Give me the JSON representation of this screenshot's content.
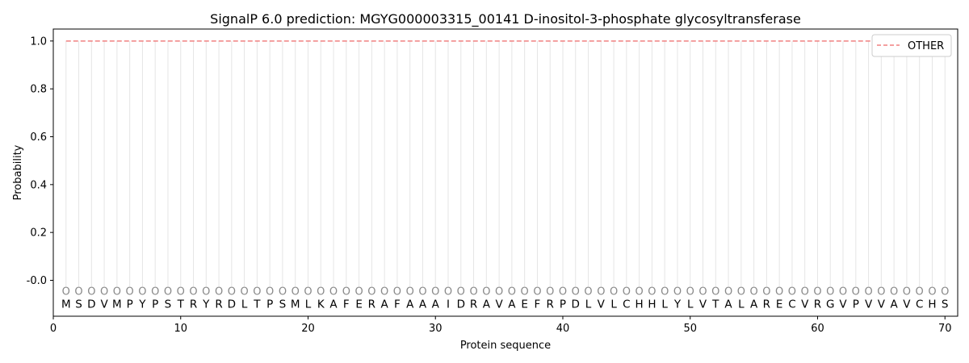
{
  "chart_data": {
    "type": "line",
    "title": "SignalP 6.0 prediction: MGYG000003315_00141 D-inositol-3-phosphate glycosyltransferase",
    "xlabel": "Protein sequence",
    "ylabel": "Probability",
    "xlim": [
      0,
      71
    ],
    "ylim": [
      -0.15,
      1.05
    ],
    "x_ticks": [
      0,
      10,
      20,
      30,
      40,
      50,
      60,
      70
    ],
    "y_ticks": [
      "-0.0",
      "0.2",
      "0.4",
      "0.6",
      "0.8",
      "1.0"
    ],
    "y_tick_values": [
      0.0,
      0.2,
      0.4,
      0.6,
      0.8,
      1.0
    ],
    "sequence": [
      "M",
      "S",
      "D",
      "V",
      "M",
      "P",
      "Y",
      "P",
      "S",
      "T",
      "R",
      "Y",
      "R",
      "D",
      "L",
      "T",
      "P",
      "S",
      "M",
      "L",
      "K",
      "A",
      "F",
      "E",
      "R",
      "A",
      "F",
      "A",
      "A",
      "A",
      "I",
      "D",
      "R",
      "A",
      "V",
      "A",
      "E",
      "F",
      "R",
      "P",
      "D",
      "L",
      "V",
      "L",
      "C",
      "H",
      "H",
      "L",
      "Y",
      "L",
      "V",
      "T",
      "A",
      "L",
      "A",
      "R",
      "E",
      "C",
      "V",
      "R",
      "G",
      "V",
      "P",
      "V",
      "V",
      "A",
      "V",
      "C",
      "H",
      "S"
    ],
    "predicted_label": "O",
    "series": [
      {
        "name": "OTHER",
        "style": "dashed",
        "color": "#f08080",
        "x_start": 1,
        "x_end": 70,
        "values_constant": 1.0
      }
    ],
    "grid": "vertical per residue",
    "legend_position": "top-right"
  }
}
